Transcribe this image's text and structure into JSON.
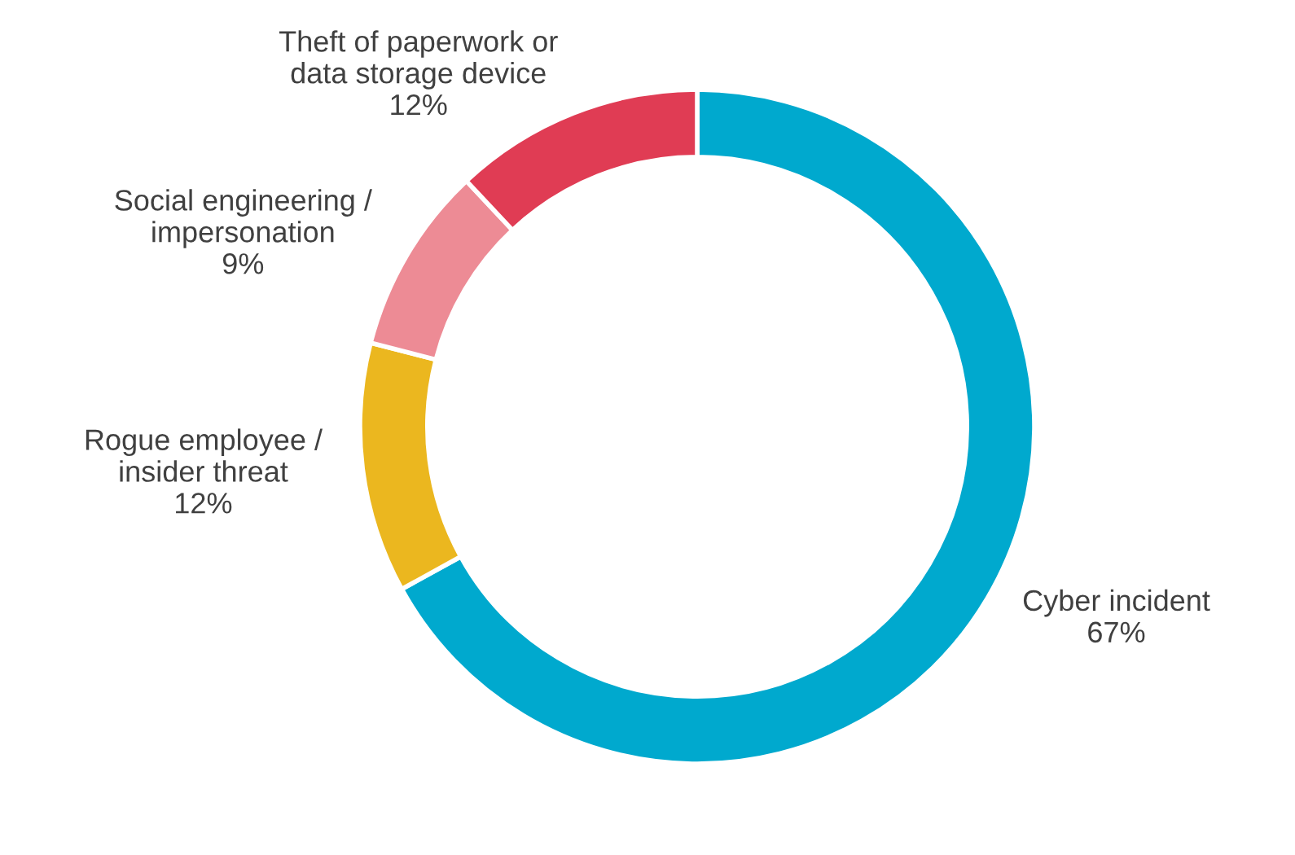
{
  "chart_data": {
    "type": "donut",
    "categories": [
      "Cyber incident",
      "Rogue employee /\ninsider threat",
      "Social engineering /\nimpersonation",
      "Theft of paperwork or\ndata storage device"
    ],
    "values": [
      67,
      12,
      9,
      12
    ],
    "value_labels": [
      "67%",
      "12%",
      "9%",
      "12%"
    ],
    "colors": [
      "#00a9ce",
      "#ebb71f",
      "#ed8b95",
      "#e03c54"
    ],
    "legend": false
  }
}
